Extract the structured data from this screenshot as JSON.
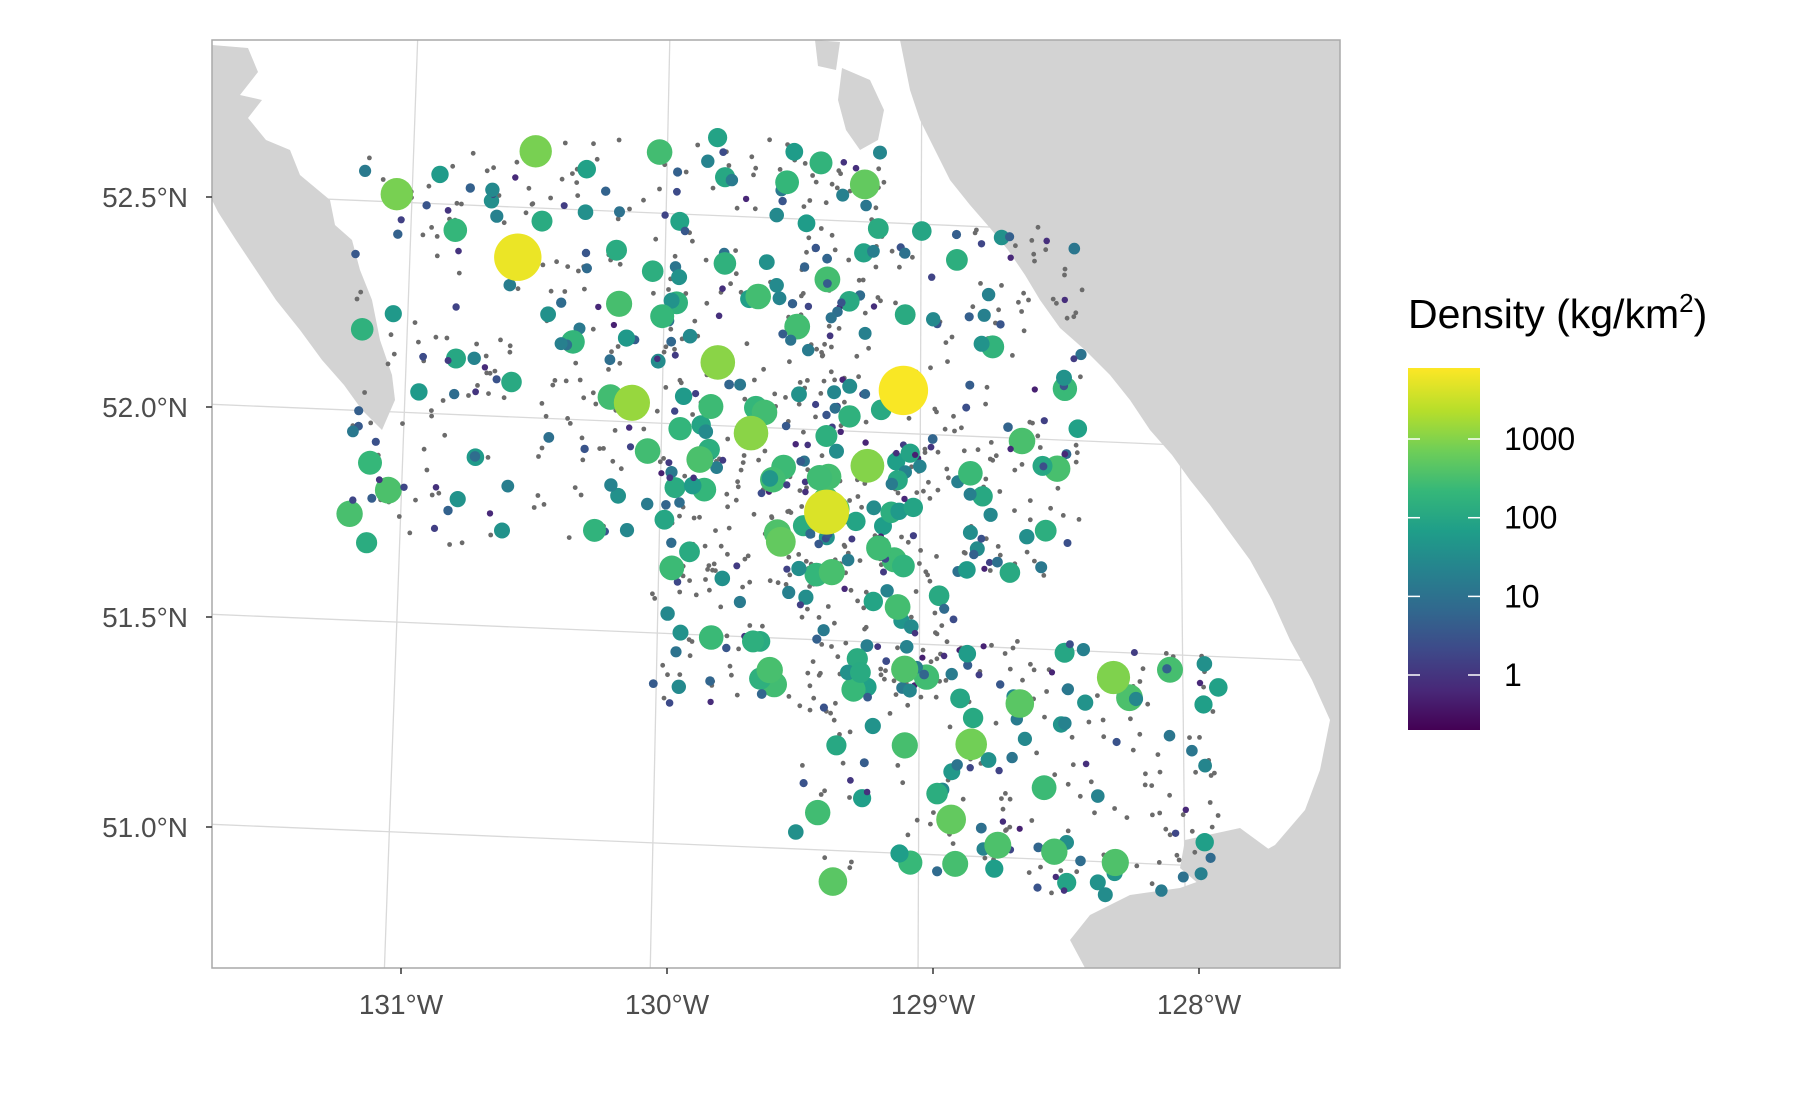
{
  "figure": {
    "type": "map",
    "legend": {
      "title_main": "Density (kg/km",
      "title_sup": "2",
      "title_end": ")",
      "ticks": [
        {
          "label": "1000",
          "value": 1000
        },
        {
          "label": "100",
          "value": 100
        },
        {
          "label": "10",
          "value": 10
        },
        {
          "label": "1",
          "value": 1
        }
      ],
      "range": [
        0.2,
        8000
      ],
      "scale": "log",
      "colormap": "viridis"
    },
    "axes": {
      "x_ticks": [
        {
          "label": "131°W",
          "value": -131
        },
        {
          "label": "130°W",
          "value": -130
        },
        {
          "label": "129°W",
          "value": -129
        },
        {
          "label": "128°W",
          "value": -128
        }
      ],
      "y_ticks": [
        {
          "label": "52.5°N",
          "value": 52.5
        },
        {
          "label": "52.0°N",
          "value": 52.0
        },
        {
          "label": "51.5°N",
          "value": 51.5
        },
        {
          "label": "51.0°N",
          "value": 51.0
        }
      ],
      "xlim": [
        -131.65,
        -127.4
      ],
      "ylim": [
        50.67,
        52.87
      ],
      "grid": true
    },
    "colors": {
      "land": "#d3d3d3",
      "grid": "#d9d9d9",
      "panel_border": "#a9a9a9",
      "zero_catch": "#6b6b6b",
      "viridis": [
        "#440154",
        "#482878",
        "#3e4989",
        "#31688e",
        "#26828e",
        "#1f9e89",
        "#35b779",
        "#6ece58",
        "#b5de2b",
        "#fde725"
      ]
    }
  },
  "chart_data": {
    "type": "scatter",
    "xlabel": "",
    "ylabel": "",
    "color_label": "Density (kg/km²)",
    "points_notes": "point size and color scale with density; grey points are zero-density sets",
    "highlight_points": [
      {
        "lon": -130.58,
        "lat": 52.38,
        "density": 6000
      },
      {
        "lon": -129.12,
        "lat": 52.04,
        "density": 7500
      },
      {
        "lon": -129.4,
        "lat": 51.75,
        "density": 4500
      },
      {
        "lon": -130.14,
        "lat": 52.02,
        "density": 1500
      },
      {
        "lon": -129.82,
        "lat": 52.11,
        "density": 1200
      },
      {
        "lon": -129.69,
        "lat": 51.94,
        "density": 1200
      },
      {
        "lon": -129.25,
        "lat": 51.86,
        "density": 1100
      },
      {
        "lon": -131.04,
        "lat": 52.55,
        "density": 900
      },
      {
        "lon": -130.52,
        "lat": 52.63,
        "density": 900
      },
      {
        "lon": -129.28,
        "lat": 52.53,
        "density": 600
      },
      {
        "lon": -128.31,
        "lat": 51.37,
        "density": 1000
      },
      {
        "lon": -128.84,
        "lat": 51.2,
        "density": 800
      },
      {
        "lon": -128.91,
        "lat": 51.02,
        "density": 600
      },
      {
        "lon": -129.35,
        "lat": 50.87,
        "density": 500
      },
      {
        "lon": -128.66,
        "lat": 51.3,
        "density": 500
      },
      {
        "lon": -129.57,
        "lat": 51.68,
        "density": 600
      },
      {
        "lon": -128.29,
        "lat": 50.93,
        "density": 400
      },
      {
        "lon": -128.52,
        "lat": 50.95,
        "density": 350
      }
    ],
    "survey_regions": [
      {
        "lon": [
          -131.2,
          -129.95
        ],
        "lat": [
          51.7,
          52.65
        ]
      },
      {
        "lon": [
          -130.05,
          -129.2
        ],
        "lat": [
          51.55,
          52.65
        ]
      },
      {
        "lon": [
          -129.55,
          -128.45
        ],
        "lat": [
          51.6,
          52.45
        ]
      },
      {
        "lon": [
          -130.05,
          -128.8
        ],
        "lat": [
          51.3,
          51.9
        ]
      },
      {
        "lon": [
          -129.5,
          -127.9
        ],
        "lat": [
          50.85,
          51.45
        ]
      }
    ]
  }
}
